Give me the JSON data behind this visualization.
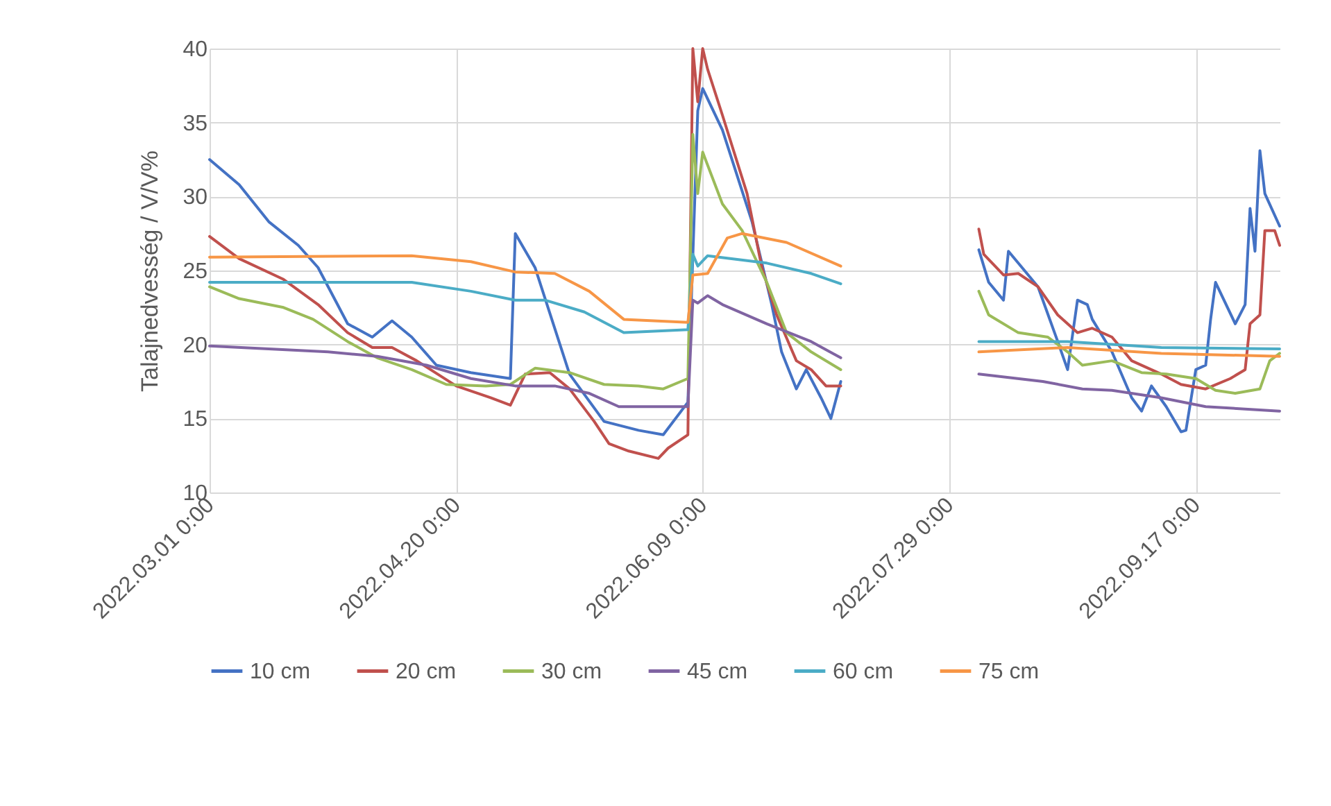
{
  "chart_data": {
    "type": "line",
    "ylabel": "Talajnedvesség / V/V%",
    "ylim": [
      10,
      40
    ],
    "yticks": [
      10,
      15,
      20,
      25,
      30,
      35,
      40
    ],
    "xlim": [
      "2022-03-01",
      "2022-10-04"
    ],
    "xticks": [
      {
        "value": "2022-03-01",
        "label": "2022.03.01 0:00"
      },
      {
        "value": "2022-04-20",
        "label": "2022.04.20 0:00"
      },
      {
        "value": "2022-06-09",
        "label": "2022.06.09 0:00"
      },
      {
        "value": "2022-07-29",
        "label": "2022.07.29 0:00"
      },
      {
        "value": "2022-09-17",
        "label": "2022.09.17 0:00"
      }
    ],
    "grid": true,
    "legend": "bottom",
    "series": [
      {
        "name": "10 cm",
        "color": "#4472c4",
        "x": [
          "2022-03-01",
          "2022-03-07",
          "2022-03-13",
          "2022-03-19",
          "2022-03-23",
          "2022-03-29",
          "2022-04-03",
          "2022-04-07",
          "2022-04-11",
          "2022-04-16",
          "2022-04-23",
          "2022-05-01",
          "2022-05-02",
          "2022-05-06",
          "2022-05-13",
          "2022-05-20",
          "2022-05-27",
          "2022-06-01",
          "2022-06-06",
          "2022-06-08",
          "2022-06-09",
          "2022-06-13",
          "2022-06-19",
          "2022-06-23",
          "2022-06-25",
          "2022-06-28",
          "2022-06-30",
          "2022-07-03",
          "2022-07-05",
          "2022-07-07",
          "2022-07-20",
          "2022-08-04",
          "2022-08-06",
          "2022-08-09",
          "2022-08-10",
          "2022-08-12",
          "2022-08-16",
          "2022-08-20",
          "2022-08-22",
          "2022-08-24",
          "2022-08-26",
          "2022-08-27",
          "2022-08-31",
          "2022-09-04",
          "2022-09-06",
          "2022-09-08",
          "2022-09-11",
          "2022-09-14",
          "2022-09-15",
          "2022-09-17",
          "2022-09-19",
          "2022-09-20",
          "2022-09-21",
          "2022-09-25",
          "2022-09-27",
          "2022-09-28",
          "2022-09-29",
          "2022-09-30",
          "2022-10-01",
          "2022-10-04"
        ],
        "values": [
          32.5,
          30.8,
          28.3,
          26.7,
          25.2,
          21.4,
          20.5,
          21.6,
          20.5,
          18.6,
          18.1,
          17.7,
          27.5,
          25.2,
          18.0,
          14.8,
          14.2,
          13.9,
          16.1,
          35.8,
          37.3,
          34.5,
          28.3,
          22.7,
          19.5,
          17,
          18.3,
          16.4,
          15,
          17.5,
          null,
          26.4,
          24.2,
          23,
          26.3,
          25.5,
          23.9,
          20.2,
          18.3,
          23,
          22.7,
          21.7,
          19.5,
          16.4,
          15.5,
          17.2,
          15.8,
          14.1,
          14.2,
          18.3,
          18.6,
          21.7,
          24.2,
          21.4,
          22.7,
          29.2,
          26.3,
          33.1,
          30.2,
          28
        ]
      },
      {
        "name": "20 cm",
        "color": "#c0504d",
        "x": [
          "2022-03-01",
          "2022-03-07",
          "2022-03-16",
          "2022-03-23",
          "2022-03-29",
          "2022-04-03",
          "2022-04-07",
          "2022-04-12",
          "2022-04-20",
          "2022-04-27",
          "2022-05-01",
          "2022-05-04",
          "2022-05-09",
          "2022-05-13",
          "2022-05-18",
          "2022-05-21",
          "2022-05-25",
          "2022-05-31",
          "2022-06-02",
          "2022-06-06",
          "2022-06-07",
          "2022-06-08",
          "2022-06-09",
          "2022-06-10",
          "2022-06-13",
          "2022-06-18",
          "2022-06-21",
          "2022-06-24",
          "2022-06-28",
          "2022-07-01",
          "2022-07-04",
          "2022-07-07",
          "2022-07-20",
          "2022-08-04",
          "2022-08-05",
          "2022-08-09",
          "2022-08-12",
          "2022-08-16",
          "2022-08-20",
          "2022-08-24",
          "2022-08-27",
          "2022-08-31",
          "2022-09-04",
          "2022-09-10",
          "2022-09-14",
          "2022-09-19",
          "2022-09-24",
          "2022-09-27",
          "2022-09-28",
          "2022-09-30",
          "2022-10-01",
          "2022-10-03",
          "2022-10-04"
        ],
        "values": [
          27.3,
          25.8,
          24.4,
          22.7,
          20.8,
          19.8,
          19.8,
          18.9,
          17.2,
          16.4,
          15.9,
          18,
          18.1,
          17,
          14.8,
          13.3,
          12.8,
          12.3,
          13,
          13.9,
          40,
          36.4,
          40,
          38.6,
          35.5,
          30.2,
          25.2,
          22,
          18.9,
          18.3,
          17.2,
          17.2,
          null,
          27.8,
          26.1,
          24.7,
          24.8,
          23.9,
          22,
          20.8,
          21.1,
          20.5,
          18.9,
          18,
          17.3,
          17,
          17.7,
          18.3,
          21.4,
          22,
          27.7,
          27.7,
          26.7
        ]
      },
      {
        "name": "30 cm",
        "color": "#9bbb59",
        "x": [
          "2022-03-01",
          "2022-03-07",
          "2022-03-16",
          "2022-03-22",
          "2022-03-29",
          "2022-04-04",
          "2022-04-11",
          "2022-04-18",
          "2022-04-26",
          "2022-05-01",
          "2022-05-06",
          "2022-05-13",
          "2022-05-20",
          "2022-05-27",
          "2022-06-01",
          "2022-06-06",
          "2022-06-07",
          "2022-06-08",
          "2022-06-09",
          "2022-06-13",
          "2022-06-17",
          "2022-06-22",
          "2022-06-26",
          "2022-07-01",
          "2022-07-07",
          "2022-07-20",
          "2022-08-04",
          "2022-08-06",
          "2022-08-12",
          "2022-08-18",
          "2022-08-22",
          "2022-08-25",
          "2022-08-31",
          "2022-09-06",
          "2022-09-11",
          "2022-09-17",
          "2022-09-21",
          "2022-09-25",
          "2022-09-30",
          "2022-10-02",
          "2022-10-04"
        ],
        "values": [
          23.9,
          23.1,
          22.5,
          21.7,
          20.2,
          19.1,
          18.3,
          17.3,
          17.2,
          17.3,
          18.4,
          18.1,
          17.3,
          17.2,
          17,
          17.7,
          34.2,
          30.2,
          33,
          29.5,
          27.7,
          24.2,
          20.8,
          19.5,
          18.3,
          null,
          23.6,
          22,
          20.8,
          20.5,
          19.5,
          18.6,
          18.9,
          18.1,
          18,
          17.7,
          16.9,
          16.7,
          17,
          18.9,
          19.4
        ]
      },
      {
        "name": "45 cm",
        "color": "#8064a2",
        "x": [
          "2022-03-01",
          "2022-03-25",
          "2022-04-04",
          "2022-04-14",
          "2022-04-23",
          "2022-05-02",
          "2022-05-10",
          "2022-05-17",
          "2022-05-23",
          "2022-06-06",
          "2022-06-07",
          "2022-06-08",
          "2022-06-10",
          "2022-06-13",
          "2022-06-22",
          "2022-07-01",
          "2022-07-07",
          "2022-07-20",
          "2022-08-04",
          "2022-08-17",
          "2022-08-25",
          "2022-08-31",
          "2022-09-10",
          "2022-09-19",
          "2022-10-04"
        ],
        "values": [
          19.9,
          19.5,
          19.2,
          18.6,
          17.7,
          17.2,
          17.2,
          16.7,
          15.8,
          15.8,
          23,
          22.8,
          23.3,
          22.7,
          21.4,
          20.2,
          19.1,
          null,
          18,
          17.5,
          17,
          16.9,
          16.4,
          15.8,
          15.5
        ]
      },
      {
        "name": "60 cm",
        "color": "#4bacc6",
        "x": [
          "2022-03-01",
          "2022-04-11",
          "2022-04-23",
          "2022-05-02",
          "2022-05-08",
          "2022-05-16",
          "2022-05-24",
          "2022-06-06",
          "2022-06-07",
          "2022-06-08",
          "2022-06-10",
          "2022-06-22",
          "2022-07-01",
          "2022-07-07",
          "2022-07-20",
          "2022-08-04",
          "2022-08-22",
          "2022-09-10",
          "2022-10-04"
        ],
        "values": [
          24.2,
          24.2,
          23.6,
          23,
          23,
          22.2,
          20.8,
          21,
          26.1,
          25.3,
          26,
          25.5,
          24.8,
          24.1,
          null,
          20.2,
          20.2,
          19.8,
          19.7
        ]
      },
      {
        "name": "75 cm",
        "color": "#f79646",
        "x": [
          "2022-03-01",
          "2022-04-11",
          "2022-04-23",
          "2022-05-02",
          "2022-05-10",
          "2022-05-17",
          "2022-05-24",
          "2022-06-06",
          "2022-06-07",
          "2022-06-10",
          "2022-06-14",
          "2022-06-17",
          "2022-06-26",
          "2022-07-07",
          "2022-07-20",
          "2022-08-04",
          "2022-08-22",
          "2022-09-10",
          "2022-10-04"
        ],
        "values": [
          25.9,
          26,
          25.6,
          24.9,
          24.8,
          23.6,
          21.7,
          21.5,
          24.7,
          24.8,
          27.2,
          27.5,
          26.9,
          25.3,
          null,
          19.5,
          19.8,
          19.4,
          19.2
        ]
      }
    ]
  }
}
